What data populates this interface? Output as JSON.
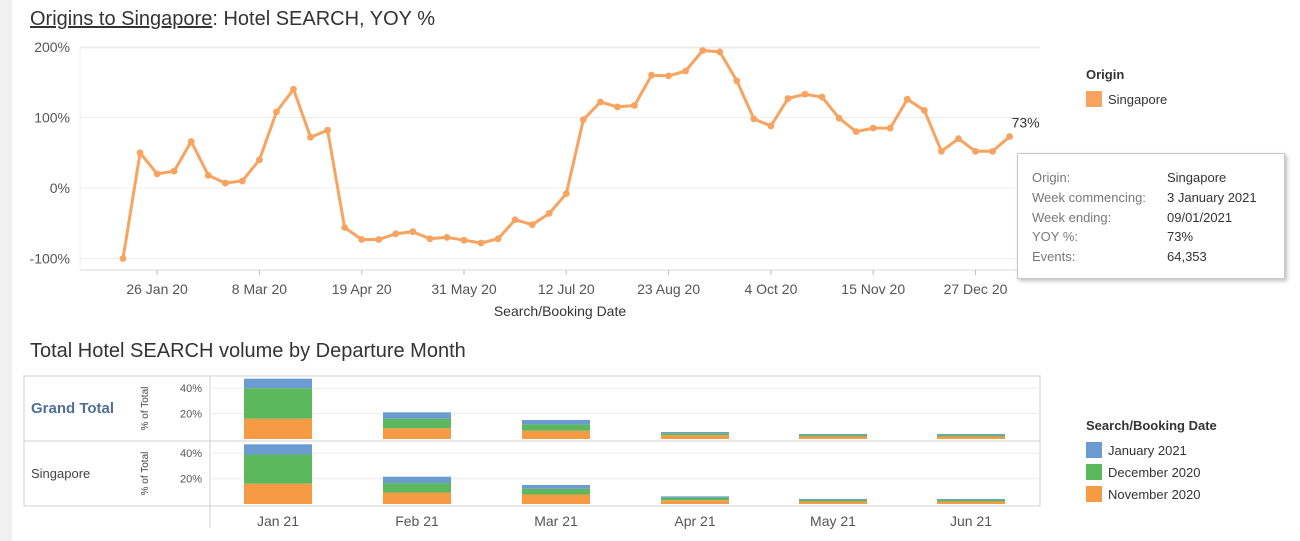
{
  "line_title": {
    "link": "Origins to Singapore",
    "rest": ": Hotel SEARCH, YOY %"
  },
  "bar_title": "Total Hotel SEARCH volume by Departure Month",
  "colors": {
    "line": "#f8a35f",
    "jan2021": "#6b9bd1",
    "dec2020": "#5cb85c",
    "nov2020": "#f79a44",
    "grid": "#ececec"
  },
  "legend_origin": {
    "title": "Origin",
    "item": "Singapore"
  },
  "legend_date": {
    "title": "Search/Booking Date",
    "items": [
      "January 2021",
      "December 2020",
      "November 2020"
    ]
  },
  "tooltip": {
    "rows": [
      {
        "k": "Origin:",
        "v": "Singapore"
      },
      {
        "k": "Week commencing:",
        "v": "3 January 2021"
      },
      {
        "k": "Week ending:",
        "v": "09/01/2021"
      },
      {
        "k": "YOY %:",
        "v": "73%"
      },
      {
        "k": "Events:",
        "v": "64,353"
      }
    ]
  },
  "chart_data": [
    {
      "type": "line",
      "title": "Origins to Singapore: Hotel SEARCH, YOY %",
      "xlabel": "Search/Booking Date",
      "ylabel": "",
      "ylim": [
        -110,
        215
      ],
      "yticks": [
        200,
        100,
        0,
        -100
      ],
      "ytick_labels": [
        "200%",
        "100%",
        "0%",
        "-100%"
      ],
      "xtick_weeks": [
        2,
        8,
        14,
        20,
        26,
        32,
        38,
        44,
        50
      ],
      "xtick_labels": [
        "26 Jan 20",
        "8 Mar 20",
        "19 Apr 20",
        "31 May 20",
        "12 Jul 20",
        "23 Aug 20",
        "4 Oct 20",
        "15 Nov 20",
        "27 Dec 20"
      ],
      "series": [
        {
          "name": "Singapore",
          "values": [
            -100,
            50,
            20,
            24,
            66,
            18,
            7,
            10,
            40,
            108,
            140,
            72,
            82,
            -56,
            -73,
            -73,
            -65,
            -62,
            -72,
            -70,
            -74,
            -78,
            -72,
            -45,
            -52,
            -36,
            -8,
            97,
            122,
            115,
            117,
            160,
            159,
            166,
            195,
            193,
            152,
            98,
            88,
            127,
            133,
            129,
            99,
            80,
            85,
            85,
            126,
            110,
            52,
            70,
            52,
            52,
            73
          ]
        }
      ],
      "end_label": "73%",
      "legend": "right"
    },
    {
      "type": "bar",
      "title": "Total Hotel SEARCH volume by Departure Month",
      "categories": [
        "Jan 21",
        "Feb 21",
        "Mar 21",
        "Apr 21",
        "May 21",
        "Jun 21"
      ],
      "ylabel": "% of Total",
      "ylim": [
        0,
        50
      ],
      "yticks": [
        20,
        40
      ],
      "ytick_labels": [
        "20%",
        "40%"
      ],
      "stack_order": [
        "November 2020",
        "December 2020",
        "January 2021"
      ],
      "rows": [
        {
          "label": "Grand Total",
          "series": [
            {
              "name": "November 2020",
              "values": [
                16.0,
                8.5,
                6.5,
                3.0,
                2.0,
                2.0
              ]
            },
            {
              "name": "December 2020",
              "values": [
                24.0,
                7.5,
                5.0,
                1.5,
                1.2,
                1.2
              ]
            },
            {
              "name": "January 2021",
              "values": [
                7.5,
                5.0,
                3.5,
                1.0,
                0.8,
                0.8
              ]
            }
          ]
        },
        {
          "label": "Singapore",
          "series": [
            {
              "name": "November 2020",
              "values": [
                16.0,
                9.0,
                7.5,
                3.0,
                2.0,
                2.0
              ]
            },
            {
              "name": "December 2020",
              "values": [
                23.0,
                7.5,
                4.5,
                2.0,
                1.2,
                1.2
              ]
            },
            {
              "name": "January 2021",
              "values": [
                8.0,
                5.0,
                3.0,
                1.0,
                0.8,
                0.8
              ]
            }
          ]
        }
      ],
      "legend": "right"
    }
  ]
}
